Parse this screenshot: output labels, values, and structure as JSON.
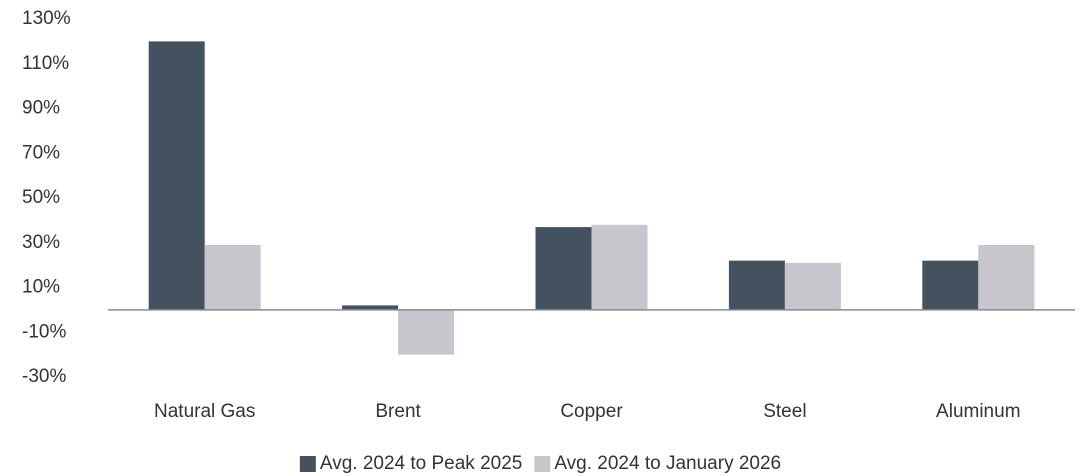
{
  "chart_data": {
    "type": "bar",
    "categories": [
      "Natural Gas",
      "Brent",
      "Copper",
      "Steel",
      "Aluminum"
    ],
    "series": [
      {
        "name": "Avg. 2024 to Peak 2025",
        "color": "#44525f",
        "values": [
          120,
          2,
          37,
          22,
          22
        ]
      },
      {
        "name": "Avg. 2024 to January 2026",
        "color": "#c8c5cc",
        "values": [
          29,
          -20,
          38,
          21,
          29
        ]
      }
    ],
    "ylim": [
      -30,
      130
    ],
    "yticks": [
      {
        "value": -30,
        "label": "-30%"
      },
      {
        "value": -10,
        "label": "-10%"
      },
      {
        "value": 10,
        "label": "10%"
      },
      {
        "value": 30,
        "label": "30%"
      },
      {
        "value": 50,
        "label": "50%"
      },
      {
        "value": 70,
        "label": "70%"
      },
      {
        "value": 90,
        "label": "90%"
      },
      {
        "value": 110,
        "label": "110%"
      },
      {
        "value": 130,
        "label": "130%"
      }
    ],
    "grid": false,
    "legend": "bottom"
  }
}
